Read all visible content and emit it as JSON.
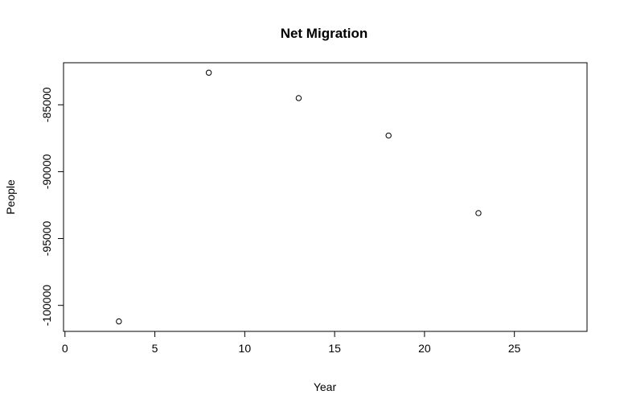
{
  "chart_data": {
    "type": "scatter",
    "title": "Net Migration",
    "xlabel": "Year",
    "ylabel": "People",
    "x": [
      3,
      8,
      13,
      18,
      23
    ],
    "y": [
      -101200,
      -82600,
      -84500,
      -87300,
      -93100
    ],
    "xlim": [
      -0.08,
      29.04
    ],
    "ylim": [
      -101944,
      -81856
    ],
    "xticks": [
      0,
      5,
      10,
      15,
      20,
      25
    ],
    "xtick_labels": [
      "0",
      "5",
      "10",
      "15",
      "20",
      "25"
    ],
    "yticks": [
      -100000,
      -95000,
      -90000,
      -85000
    ],
    "ytick_labels": [
      "-100000",
      "-95000",
      "-90000",
      "-85000"
    ],
    "grid": false,
    "legend": "none",
    "marker": "open-circle",
    "point_color": "#000000"
  }
}
